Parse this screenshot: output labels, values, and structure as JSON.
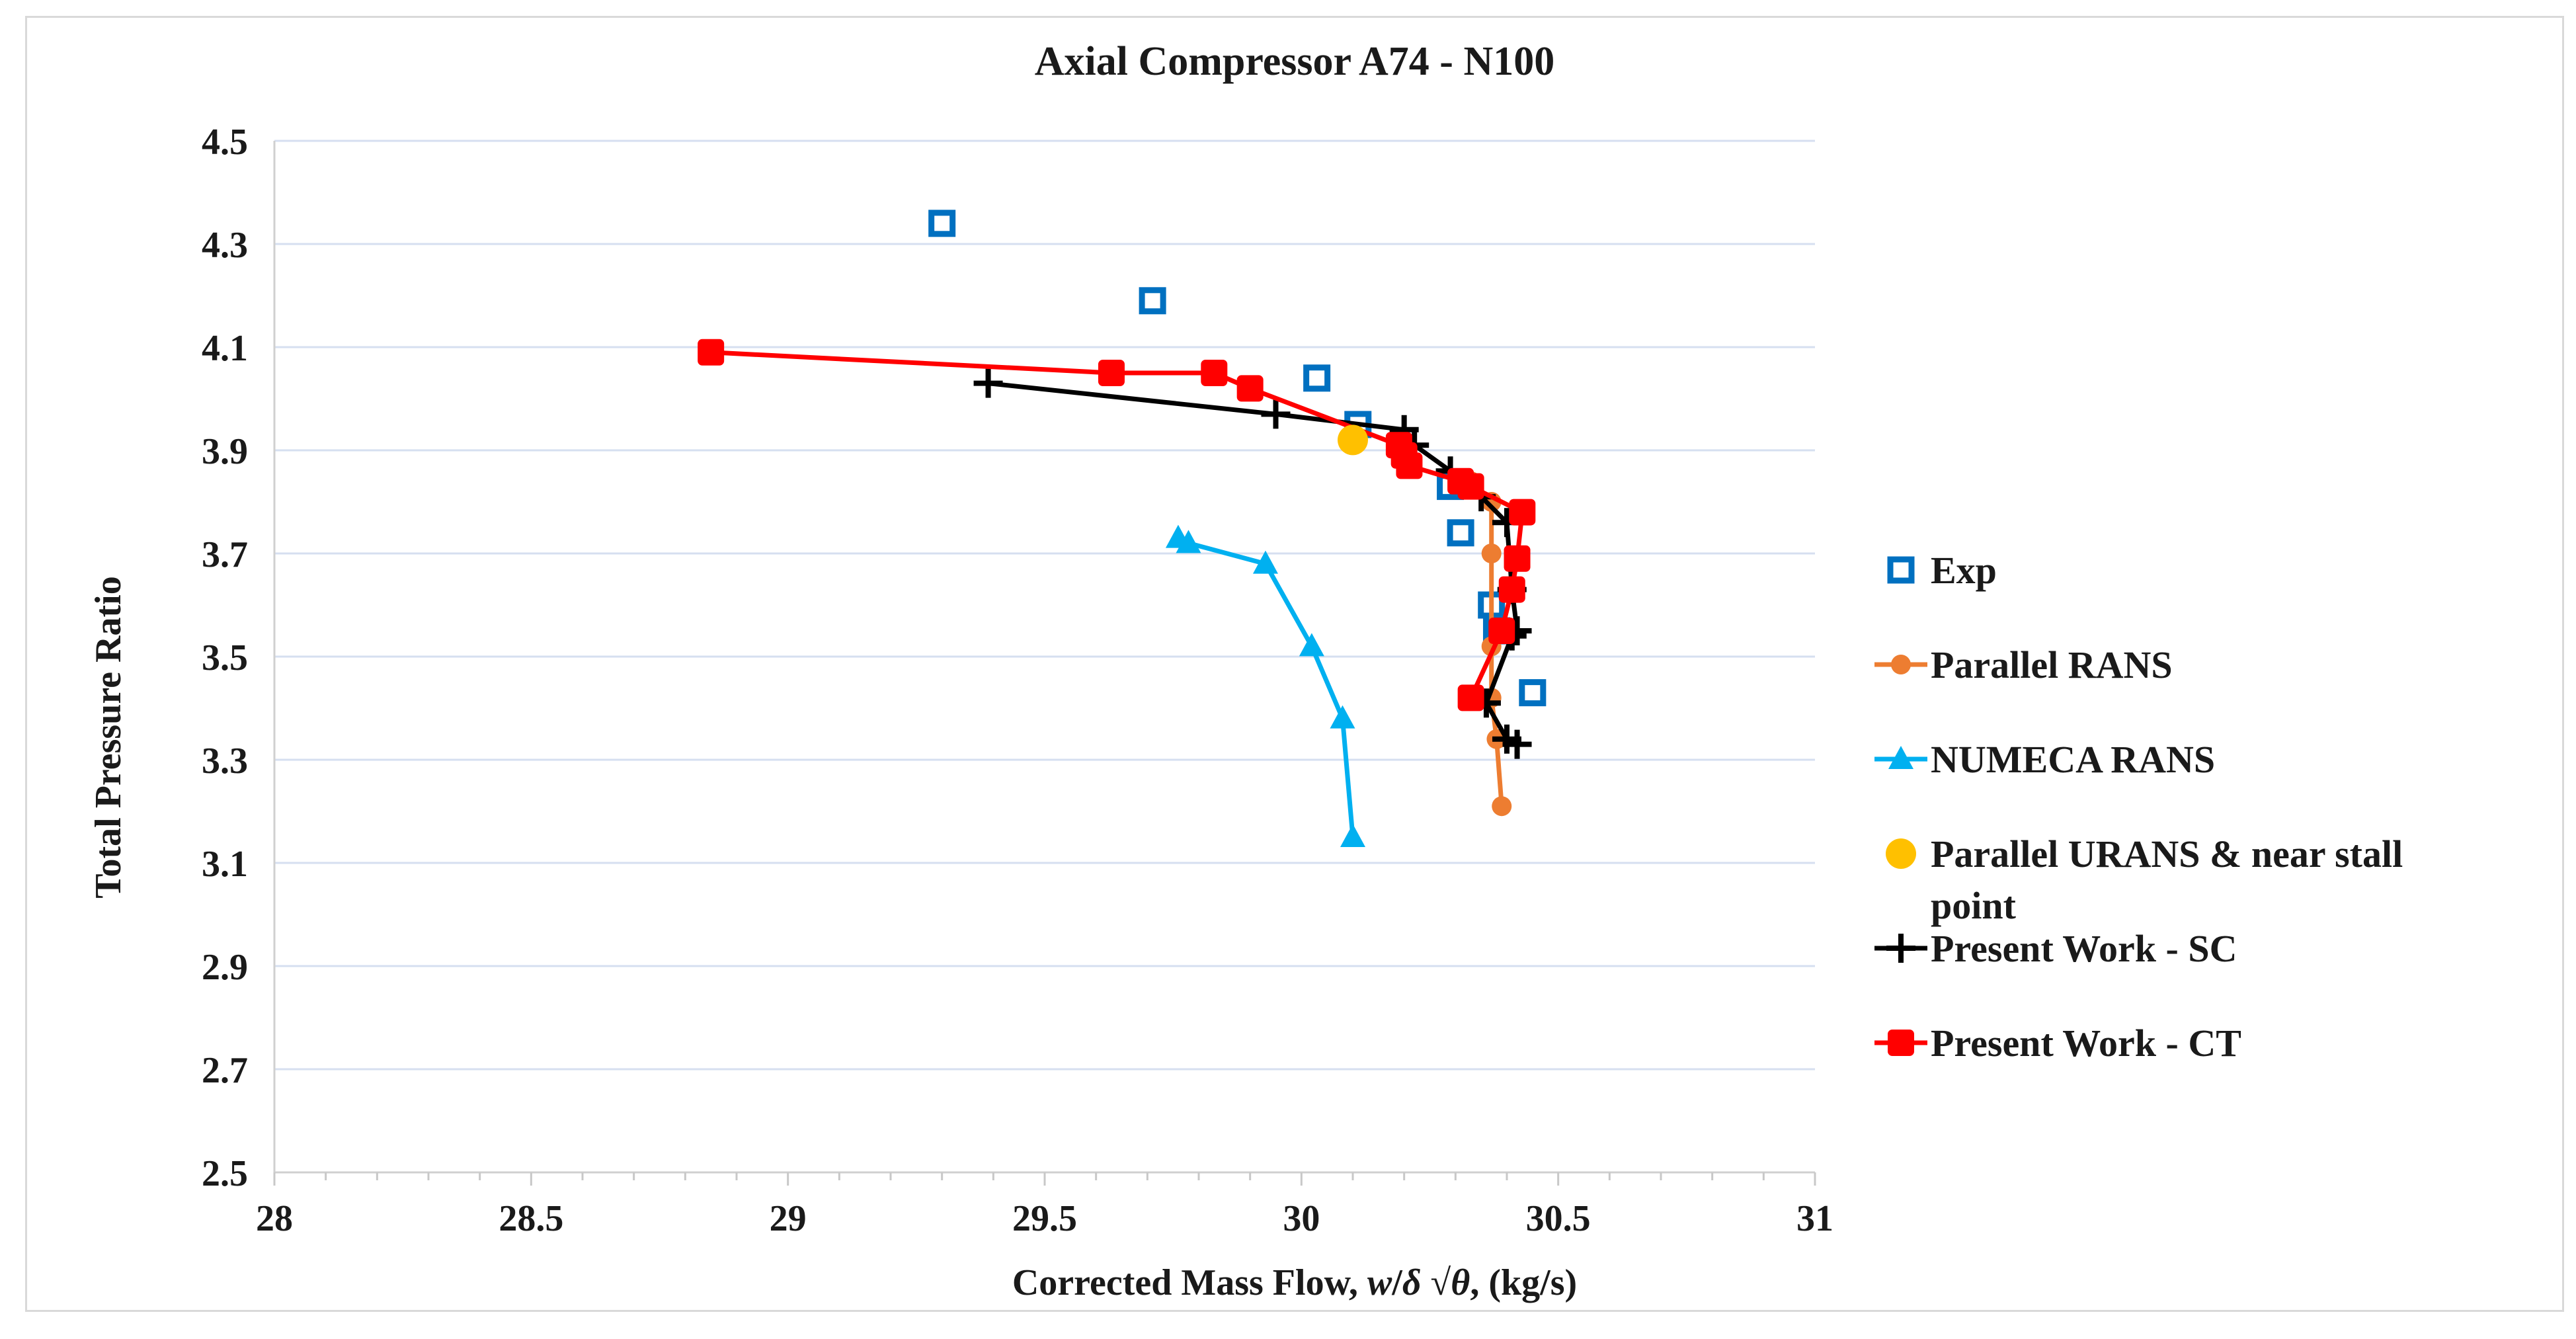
{
  "chart_data": {
    "type": "scatter",
    "title": "Axial Compressor A74 - N100",
    "xlabel_parts": [
      "Corrected Mass Flow, ",
      "w",
      "/",
      "δ",
      " √",
      "θ",
      ", (kg/s)"
    ],
    "ylabel": "Total Pressure Ratio",
    "xlim": [
      28,
      31
    ],
    "ylim": [
      2.5,
      4.5
    ],
    "x_ticks": [
      28,
      28.5,
      29,
      29.5,
      30,
      30.5,
      31
    ],
    "x_tick_labels": [
      "28",
      "28.5",
      "29",
      "29.5",
      "30",
      "30.5",
      "31"
    ],
    "y_ticks": [
      2.5,
      2.7,
      2.9,
      3.1,
      3.3,
      3.5,
      3.7,
      3.9,
      4.1,
      4.3,
      4.5
    ],
    "y_tick_labels": [
      "2.5",
      "2.7",
      "2.9",
      "3.1",
      "3.3",
      "3.5",
      "3.7",
      "3.9",
      "4.1",
      "4.3",
      "4.5"
    ],
    "grid": "horizontal",
    "legend_position": "right",
    "series": [
      {
        "name": "Exp",
        "legend_label": "Exp",
        "marker": "square-open",
        "line": false,
        "color": "#0070c0",
        "x": [
          29.3,
          29.71,
          30.03,
          30.11,
          30.29,
          30.31,
          30.37,
          30.38,
          30.45
        ],
        "y": [
          4.34,
          4.19,
          4.04,
          3.95,
          3.83,
          3.74,
          3.6,
          3.55,
          3.43
        ]
      },
      {
        "name": "Parallel RANS",
        "legend_label": "Parallel RANS",
        "marker": "circle",
        "line": true,
        "color": "#ed7d31",
        "x": [
          30.33,
          30.37,
          30.37,
          30.37,
          30.37,
          30.38,
          30.39
        ],
        "y": [
          3.84,
          3.8,
          3.7,
          3.52,
          3.42,
          3.34,
          3.21
        ]
      },
      {
        "name": "NUMECA RANS",
        "legend_label": "NUMECA RANS",
        "marker": "triangle",
        "line": true,
        "color": "#00b0f0",
        "x": [
          29.76,
          29.78,
          29.93,
          30.02,
          30.08,
          30.1
        ],
        "y": [
          3.73,
          3.72,
          3.68,
          3.52,
          3.38,
          3.15
        ]
      },
      {
        "name": "Parallel URANS & near stall point",
        "legend_label_lines": [
          "Parallel URANS & near stall",
          "point"
        ],
        "marker": "circle-large",
        "line": false,
        "color": "#ffc000",
        "x": [
          30.1
        ],
        "y": [
          3.92
        ]
      },
      {
        "name": "Present Work - SC",
        "legend_label": "Present Work - SC",
        "marker": "plus",
        "line": true,
        "color": "#000000",
        "x": [
          29.39,
          29.95,
          30.2,
          30.22,
          30.29,
          30.35,
          30.4,
          30.41,
          30.42,
          30.41,
          30.36,
          30.4,
          30.42
        ],
        "y": [
          4.03,
          3.97,
          3.94,
          3.91,
          3.86,
          3.81,
          3.76,
          3.63,
          3.55,
          3.54,
          3.41,
          3.34,
          3.33
        ]
      },
      {
        "name": "Present Work - CT",
        "legend_label": "Present Work - CT",
        "marker": "square-filled",
        "line": true,
        "color": "#ff0000",
        "x": [
          28.85,
          29.63,
          29.83,
          29.9,
          30.19,
          30.2,
          30.21,
          30.31,
          30.33,
          30.43,
          30.42,
          30.41,
          30.39,
          30.33
        ],
        "y": [
          4.09,
          4.05,
          4.05,
          4.02,
          3.91,
          3.89,
          3.87,
          3.84,
          3.83,
          3.78,
          3.69,
          3.63,
          3.55,
          3.42
        ]
      }
    ]
  }
}
